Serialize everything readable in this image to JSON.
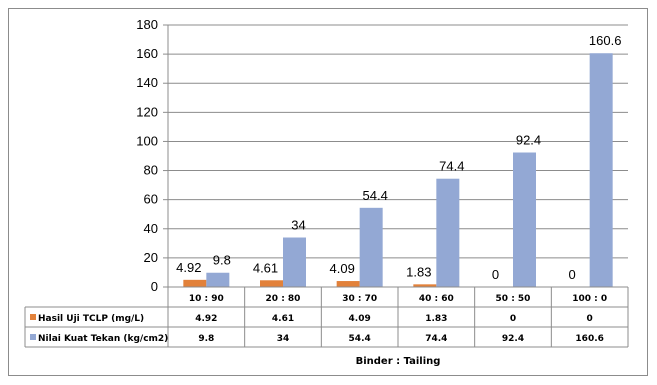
{
  "chart_data": {
    "type": "bar",
    "categories": [
      "10 : 90",
      "20 : 80",
      "30 : 70",
      "40 : 60",
      "50 : 50",
      "100 : 0"
    ],
    "series": [
      {
        "name": "Hasil Uji TCLP (mg/L)",
        "values": [
          4.92,
          4.61,
          4.09,
          1.83,
          0,
          0
        ],
        "color": "#e2813a",
        "value_labels": [
          "4.92",
          "4.61",
          "4.09",
          "1.83",
          "0",
          "0"
        ]
      },
      {
        "name": "Nilai Kuat Tekan (kg/cm2)",
        "values": [
          9.8,
          34,
          54.4,
          74.4,
          92.4,
          160.6
        ],
        "color": "#93a8d4",
        "value_labels": [
          "9.8",
          "34",
          "54.4",
          "74.4",
          "92.4",
          "160.6"
        ]
      }
    ],
    "ylim": [
      0,
      180
    ],
    "yticks": [
      "0",
      "20",
      "40",
      "60",
      "80",
      "100",
      "120",
      "140",
      "160",
      "180"
    ],
    "gridlines": true,
    "legend": "data-table",
    "xlabel": "Binder : Tailing",
    "ylabel": ""
  }
}
